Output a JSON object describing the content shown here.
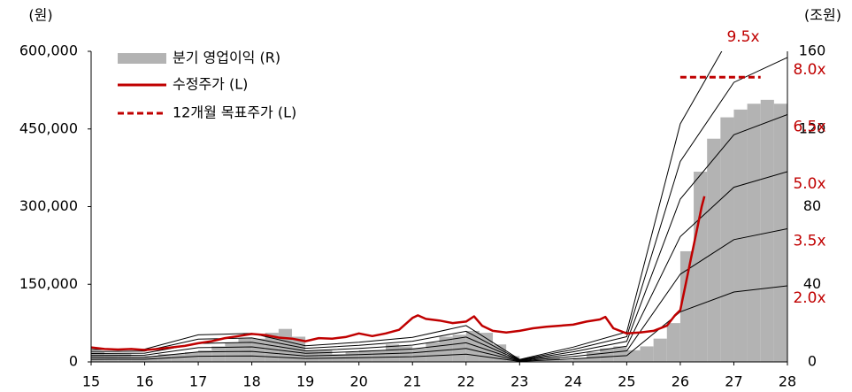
{
  "chart_data": {
    "type": "per_band",
    "y_axis_label": "(원)",
    "y2_axis_label": "(조원)",
    "xlim": [
      15,
      28
    ],
    "xticks": [
      15,
      16,
      17,
      18,
      19,
      20,
      21,
      22,
      23,
      24,
      25,
      26,
      27,
      28
    ],
    "ylim": [
      0,
      600000
    ],
    "yticks": [
      0,
      {
        "value": 150000,
        "label": "150,000"
      },
      {
        "value": 300000,
        "label": "300,000"
      },
      {
        "value": 450000,
        "label": "450,000"
      },
      {
        "value": 600000,
        "label": "600,000"
      }
    ],
    "y2lim": [
      0,
      160
    ],
    "y2ticks": [
      0,
      40,
      80,
      120,
      160
    ],
    "bars": {
      "name": "분기 영업이익 (R)",
      "color": "#b3b3b3",
      "axis": "y2",
      "x": [
        15,
        15.25,
        15.5,
        15.75,
        16,
        16.25,
        16.5,
        16.75,
        17,
        17.25,
        17.5,
        17.75,
        18,
        18.25,
        18.5,
        18.75,
        19,
        19.25,
        19.5,
        19.75,
        20,
        20.25,
        20.5,
        20.75,
        21,
        21.25,
        21.5,
        21.75,
        22,
        22.25,
        22.5,
        22.75,
        23,
        23.25,
        23.5,
        23.75,
        24,
        24.25,
        24.5,
        24.75,
        25,
        25.25,
        25.5,
        25.75,
        26,
        26.25,
        26.5,
        26.75,
        27,
        27.25,
        27.5,
        27.75
      ],
      "values": [
        5,
        4,
        4,
        3,
        3,
        4,
        4,
        5,
        6,
        8,
        10,
        12,
        12,
        15,
        17,
        13,
        6,
        6,
        4,
        5,
        6,
        6,
        9,
        8,
        7,
        10,
        13,
        14,
        16,
        15,
        9,
        3,
        1,
        1,
        2,
        1,
        2,
        5,
        7,
        8,
        6,
        8,
        12,
        20,
        57,
        98,
        115,
        126,
        130,
        133,
        135,
        133
      ]
    },
    "price": {
      "name": "수정주가 (L)",
      "color": "#c00000",
      "x": [
        15,
        15.25,
        15.5,
        15.75,
        16,
        16.25,
        16.5,
        16.75,
        17,
        17.25,
        17.5,
        17.75,
        18,
        18.25,
        18.5,
        18.75,
        19,
        19.25,
        19.5,
        19.75,
        20,
        20.25,
        20.5,
        20.75,
        21,
        21.1,
        21.25,
        21.5,
        21.75,
        22,
        22.15,
        22.3,
        22.5,
        22.75,
        23,
        23.25,
        23.5,
        23.75,
        24,
        24.25,
        24.5,
        24.6,
        24.75,
        25,
        25.25,
        25.5,
        25.75,
        25.9,
        26,
        26.1,
        26.2,
        26.3,
        26.4,
        26.45
      ],
      "values": [
        28000,
        25000,
        24000,
        25000,
        23000,
        25000,
        28000,
        31000,
        36000,
        40000,
        46000,
        50000,
        54000,
        52000,
        47000,
        45000,
        40000,
        46000,
        45000,
        48000,
        55000,
        50000,
        55000,
        62000,
        85000,
        90000,
        83000,
        80000,
        75000,
        78000,
        88000,
        70000,
        60000,
        57000,
        60000,
        65000,
        68000,
        70000,
        72000,
        78000,
        82000,
        87000,
        65000,
        55000,
        57000,
        60000,
        70000,
        90000,
        100000,
        150000,
        200000,
        250000,
        300000,
        320000
      ]
    },
    "target": {
      "name": "12개월 목표주가 (L)",
      "color": "#c00000",
      "x": [
        26,
        27.5
      ],
      "values": [
        550000,
        550000
      ]
    },
    "bands": {
      "color": "#000000",
      "label_color": "#c00000",
      "x": [
        15,
        16,
        17,
        18,
        19,
        20,
        21,
        22,
        23,
        24,
        25,
        26,
        27,
        28
      ],
      "series": [
        {
          "name": "2.0x",
          "values": [
            5000,
            5200,
            11000,
            11600,
            6600,
            8000,
            10000,
            14800,
            1000,
            6000,
            12200,
            96800,
            135000,
            147000
          ]
        },
        {
          "name": "3.5x",
          "values": [
            8750,
            9100,
            19250,
            20300,
            11550,
            14000,
            17500,
            25900,
            1750,
            10500,
            21350,
            169400,
            236250,
            257250
          ]
        },
        {
          "name": "5.0x",
          "values": [
            12500,
            13000,
            27500,
            29000,
            16500,
            20000,
            25000,
            37000,
            2500,
            15000,
            30500,
            242000,
            337500,
            367500
          ]
        },
        {
          "name": "6.5x",
          "values": [
            16250,
            16900,
            35750,
            37700,
            21450,
            26000,
            32500,
            48100,
            3250,
            19500,
            39650,
            314600,
            438750,
            477750
          ]
        },
        {
          "name": "8.0x",
          "values": [
            20000,
            20800,
            44000,
            46400,
            26400,
            32000,
            40000,
            59200,
            4000,
            24000,
            48800,
            387200,
            540000,
            588000
          ]
        },
        {
          "name": "9.5x",
          "values": [
            23750,
            24700,
            52250,
            55100,
            31350,
            38000,
            47500,
            70300,
            4750,
            28500,
            57950,
            459800,
            641250,
            698250
          ]
        }
      ]
    }
  }
}
